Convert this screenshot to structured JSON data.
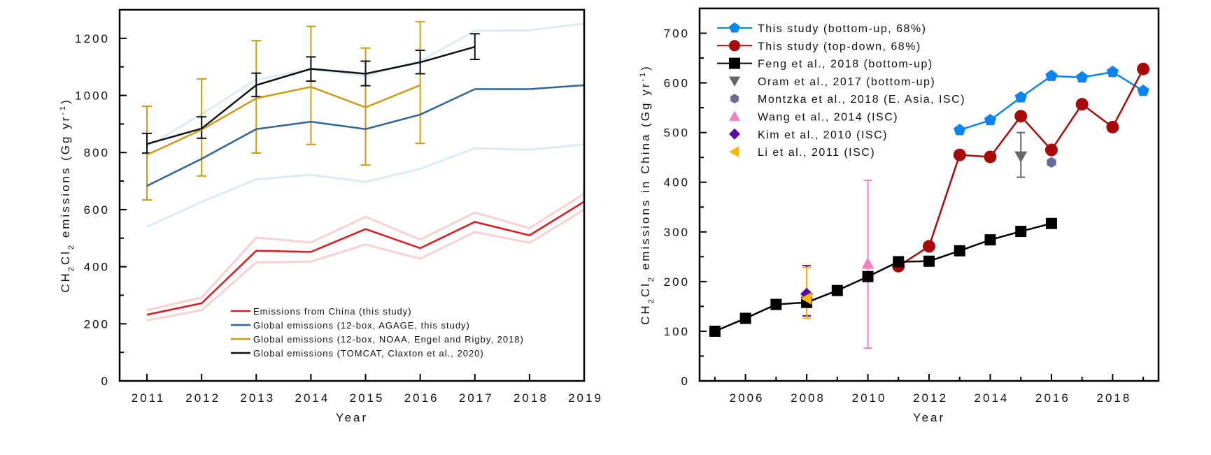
{
  "chart_data": [
    {
      "id": "left",
      "type": "line",
      "title": "",
      "xlabel": "Year",
      "ylabel_parts": [
        "CH",
        "2",
        "Cl",
        "2",
        " emissions  (Gg yr",
        "-1",
        ")"
      ],
      "xlim": [
        2010.5,
        2019
      ],
      "ylim": [
        0,
        1300
      ],
      "x_ticks": [
        2011,
        2012,
        2013,
        2014,
        2015,
        2016,
        2017,
        2018,
        2019
      ],
      "y_ticks": [
        0,
        200,
        400,
        600,
        800,
        1000,
        1200
      ],
      "y_minor_step": 100,
      "grid": false,
      "legend_position": "bottom-right",
      "series": [
        {
          "name": "Emissions from China (this study)",
          "color": "#e8141c",
          "band_color": "#fcd0d0",
          "x": [
            2011,
            2012,
            2013,
            2014,
            2015,
            2016,
            2017,
            2018,
            2019
          ],
          "y": [
            232,
            272,
            456,
            452,
            532,
            465,
            557,
            510,
            628
          ],
          "upper": [
            248,
            292,
            502,
            485,
            575,
            495,
            590,
            535,
            656
          ],
          "lower": [
            212,
            248,
            415,
            418,
            478,
            428,
            522,
            484,
            600
          ]
        },
        {
          "name": "Global emissions (12-box, AGAGE, this study)",
          "color": "#2f6597",
          "band_color": "#dcebf7",
          "x": [
            2011,
            2012,
            2013,
            2014,
            2015,
            2016,
            2017,
            2018,
            2019
          ],
          "y": [
            683,
            778,
            882,
            908,
            882,
            933,
            1022,
            1022,
            1036
          ],
          "upper": [
            820,
            935,
            1055,
            1092,
            1068,
            1120,
            1227,
            1228,
            1252
          ],
          "lower": [
            540,
            627,
            706,
            722,
            697,
            743,
            815,
            810,
            828
          ]
        },
        {
          "name": "Global emissions (12-box, NOAA, Engel and Rigby, 2018)",
          "color": "#d09a10",
          "x": [
            2011,
            2012,
            2013,
            2014,
            2015,
            2016
          ],
          "y": [
            792,
            880,
            990,
            1030,
            958,
            1036
          ],
          "err_upper": [
            962,
            1058,
            1192,
            1242,
            1166,
            1258
          ],
          "err_lower": [
            634,
            718,
            798,
            828,
            756,
            832
          ]
        },
        {
          "name": "Global emissions (TOMCAT, Claxton et al., 2020)",
          "color": "#111111",
          "x": [
            2011,
            2012,
            2013,
            2014,
            2015,
            2016,
            2017
          ],
          "y": [
            830,
            884,
            1036,
            1093,
            1076,
            1116,
            1170
          ],
          "err_upper": [
            867,
            925,
            1078,
            1135,
            1120,
            1158,
            1216
          ],
          "err_lower": [
            798,
            850,
            996,
            1050,
            1034,
            1076,
            1126
          ]
        }
      ]
    },
    {
      "id": "right",
      "type": "line",
      "title": "",
      "xlabel": "Year",
      "ylabel_parts": [
        "CH",
        "2",
        "Cl",
        "2",
        " emissions in China (Gg yr",
        "-1",
        ")"
      ],
      "xlim": [
        2004.5,
        2019.5
      ],
      "ylim": [
        0,
        750
      ],
      "x_ticks": [
        2006,
        2008,
        2010,
        2012,
        2014,
        2016,
        2018
      ],
      "x_minor_ticks": [
        2005,
        2007,
        2009,
        2011,
        2013,
        2015,
        2017,
        2019
      ],
      "y_ticks": [
        0,
        100,
        200,
        300,
        400,
        500,
        600,
        700
      ],
      "y_minor_step": 50,
      "grid": false,
      "legend_position": "top-left",
      "series": [
        {
          "name": "This study (bottom-up, 68%)",
          "color": "#0a84f0",
          "marker": "pentagon",
          "x": [
            2013,
            2014,
            2015,
            2016,
            2017,
            2018,
            2019
          ],
          "y": [
            505,
            525,
            571,
            614,
            611,
            622,
            584
          ]
        },
        {
          "name": "This study (top-down, 68%)",
          "color": "#a80a0a",
          "marker": "circle",
          "x": [
            2011,
            2012,
            2013,
            2014,
            2015,
            2016,
            2017,
            2018,
            2019
          ],
          "y": [
            231,
            271,
            455,
            451,
            533,
            465,
            557,
            511,
            628
          ]
        },
        {
          "name": "Feng et al., 2018 (bottom-up)",
          "color": "#000000",
          "marker": "square",
          "x": [
            2005,
            2006,
            2007,
            2008,
            2009,
            2010,
            2011,
            2012,
            2013,
            2014,
            2015,
            2016
          ],
          "y": [
            100,
            126,
            154,
            158,
            182,
            210,
            240,
            241,
            262,
            284,
            301,
            317
          ]
        },
        {
          "name": "Oram et al., 2017 (bottom-up)",
          "color": "#666666",
          "marker": "triangle-down",
          "x": [
            2015
          ],
          "y": [
            452
          ],
          "err_upper": [
            500
          ],
          "err_lower": [
            410
          ]
        },
        {
          "name": "Montzka et al., 2018 (E. Asia, ISC)",
          "color": "#6a6a9a",
          "marker": "hexagon",
          "x": [
            2016
          ],
          "y": [
            440
          ]
        },
        {
          "name": "Wang et al., 2014 (ISC)",
          "color": "#f080c0",
          "marker": "triangle-up",
          "x": [
            2010
          ],
          "y": [
            236
          ],
          "err_upper": [
            404
          ],
          "err_lower": [
            66
          ]
        },
        {
          "name": "Kim et al., 2010 (ISC)",
          "color": "#5a0aa8",
          "marker": "diamond",
          "x": [
            2008
          ],
          "y": [
            175
          ],
          "err_upper": [
            232
          ],
          "err_lower": [
            131
          ]
        },
        {
          "name": "Li et al., 2011 (ISC)",
          "color": "#f8b800",
          "marker": "triangle-left",
          "x": [
            2008
          ],
          "y": [
            166
          ],
          "err_upper": [
            228
          ],
          "err_lower": [
            126
          ]
        }
      ]
    }
  ]
}
